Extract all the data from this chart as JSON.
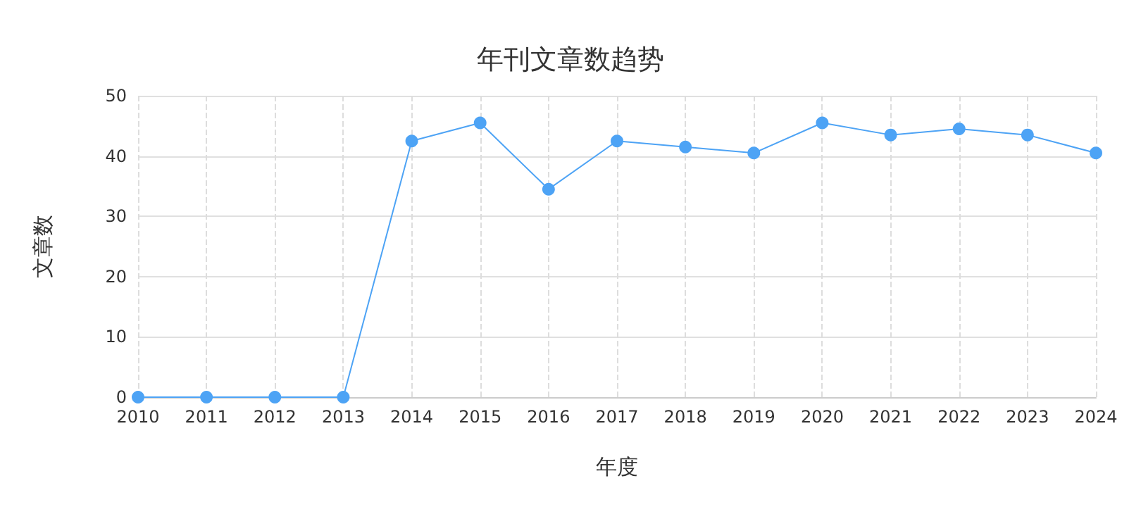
{
  "chart_data": {
    "type": "line",
    "title": "年刊文章数趋势",
    "xlabel": "年度",
    "ylabel": "文章数",
    "categories": [
      "2010",
      "2011",
      "2012",
      "2013",
      "2014",
      "2015",
      "2016",
      "2017",
      "2018",
      "2019",
      "2020",
      "2021",
      "2022",
      "2023",
      "2024"
    ],
    "series": [
      {
        "color": "#4da3f5",
        "values": [
          0,
          0,
          0,
          0,
          42.5,
          45.5,
          34.5,
          42.5,
          41.5,
          40.5,
          45.5,
          43.5,
          44.5,
          43.5,
          40.5
        ]
      }
    ],
    "ylim": [
      0,
      50
    ],
    "yticks": [
      0,
      10,
      20,
      30,
      40,
      50
    ],
    "grid": true,
    "marker": "circle",
    "line_style": "solid"
  }
}
